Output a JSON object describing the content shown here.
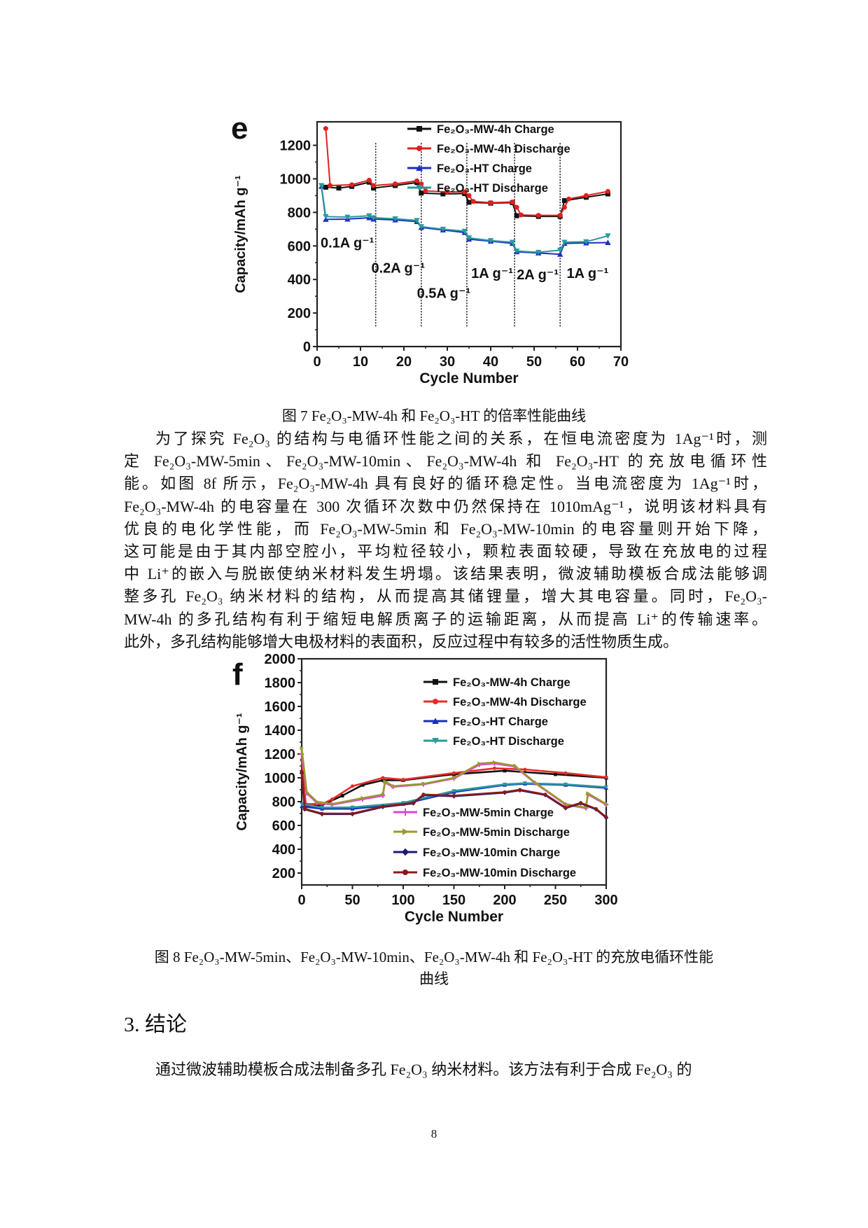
{
  "figure7": {
    "caption": "图 7 Fe₂O₃-MW-4h 和 Fe₂O₃-HT 的倍率性能曲线"
  },
  "paragraph1": {
    "lines": [
      "为了探究 Fe₂O₃ 的结构与电循环性能之间的关系，在恒电流密度为 1Ag⁻¹时，测",
      "定 Fe₂O₃-MW-5min、Fe₂O₃-MW-10min、Fe₂O₃-MW-4h 和 Fe₂O₃-HT 的充放电循环性",
      "能。如图 8f 所示，Fe₂O₃-MW-4h 具有良好的循环稳定性。当电流密度为 1Ag⁻¹时，",
      "Fe₂O₃-MW-4h 的电容量在 300 次循环次数中仍然保持在 1010mAg⁻¹，说明该材料具有",
      "优良的电化学性能，而 Fe₂O₃-MW-5min 和 Fe₂O₃-MW-10min 的电容量则开始下降，",
      "这可能是由于其内部空腔小，平均粒径较小，颗粒表面较硬，导致在充放电的过程",
      "中 Li⁺的嵌入与脱嵌使纳米材料发生坍塌。该结果表明，微波辅助模板合成法能够调",
      "整多孔 Fe₂O₃ 纳米材料的结构，从而提高其储锂量，增大其电容量。同时，Fe₂O₃-",
      "MW-4h 的多孔结构有利于缩短电解质离子的运输距离，从而提高 Li⁺的传输速率。",
      "此外，多孔结构能够增大电极材料的表面积，反应过程中有较多的活性物质生成。"
    ]
  },
  "figure8": {
    "caption_line1": "图 8 Fe₂O₃-MW-5min、Fe₂O₃-MW-10min、Fe₂O₃-MW-4h 和 Fe₂O₃-HT 的充放电循环性能",
    "caption_line2": "曲线"
  },
  "section3": {
    "heading": "3. 结论",
    "first_line": "通过微波辅助模板合成法制备多孔 Fe₂O₃ 纳米材料。该方法有利于合成 Fe₂O₃ 的"
  },
  "page_number": "8",
  "chart_data": [
    {
      "panel_label": "e",
      "type": "line",
      "xlabel": "Cycle Number",
      "ylabel": "Capacity/mAh g⁻¹",
      "xlim": [
        0,
        70
      ],
      "ylim": [
        0,
        1340
      ],
      "xticks": [
        0,
        10,
        20,
        30,
        40,
        50,
        60,
        70
      ],
      "yticks": [
        0,
        200,
        400,
        600,
        800,
        1000,
        1200
      ],
      "grid": false,
      "legend_position": "top-right",
      "dividers": [
        13.5,
        24,
        34.5,
        45.5,
        56
      ],
      "annotations": [
        {
          "text": "0.1A g⁻¹",
          "x": 0.8,
          "y": 590
        },
        {
          "text": "0.2A g⁻¹",
          "x": 12.5,
          "y": 440
        },
        {
          "text": "0.5A g⁻¹",
          "x": 23,
          "y": 290
        },
        {
          "text": "1A g⁻¹",
          "x": 35.5,
          "y": 410
        },
        {
          "text": "2A g⁻¹",
          "x": 46,
          "y": 400
        },
        {
          "text": "1A g⁻¹",
          "x": 57.5,
          "y": 410
        }
      ],
      "series": [
        {
          "name": "Fe₂O₃-MW-4h  Charge",
          "color": "#111111",
          "marker": "square",
          "points": [
            [
              2,
              950
            ],
            [
              5,
              945
            ],
            [
              8,
              955
            ],
            [
              12,
              980
            ],
            [
              13,
              945
            ],
            [
              18,
              960
            ],
            [
              23,
              978
            ],
            [
              24,
              915
            ],
            [
              29,
              910
            ],
            [
              34,
              912
            ],
            [
              35,
              860
            ],
            [
              40,
              855
            ],
            [
              45,
              858
            ],
            [
              46,
              780
            ],
            [
              51,
              776
            ],
            [
              56,
              776
            ],
            [
              57,
              870
            ],
            [
              62,
              890
            ],
            [
              67,
              910
            ]
          ]
        },
        {
          "name": "Fe₂O₃-MW-4h  Discharge",
          "color": "#e02020",
          "marker": "circle",
          "points": [
            [
              2,
              1300
            ],
            [
              3,
              960
            ],
            [
              8,
              965
            ],
            [
              12,
              992
            ],
            [
              13,
              960
            ],
            [
              18,
              970
            ],
            [
              23,
              988
            ],
            [
              24,
              970
            ],
            [
              25,
              928
            ],
            [
              30,
              922
            ],
            [
              34,
              922
            ],
            [
              35,
              900
            ],
            [
              36,
              865
            ],
            [
              40,
              858
            ],
            [
              45,
              862
            ],
            [
              46,
              830
            ],
            [
              47,
              785
            ],
            [
              51,
              782
            ],
            [
              56,
              782
            ],
            [
              57,
              830
            ],
            [
              58,
              880
            ],
            [
              62,
              900
            ],
            [
              67,
              925
            ]
          ]
        },
        {
          "name": "Fe₂O₃-HT Charge",
          "color": "#1a2fc0",
          "marker": "triangle-up",
          "points": [
            [
              1,
              955
            ],
            [
              2,
              758
            ],
            [
              7,
              760
            ],
            [
              12,
              768
            ],
            [
              13,
              760
            ],
            [
              18,
              755
            ],
            [
              23,
              745
            ],
            [
              24,
              710
            ],
            [
              29,
              695
            ],
            [
              34,
              680
            ],
            [
              35,
              640
            ],
            [
              40,
              628
            ],
            [
              45,
              615
            ],
            [
              46,
              565
            ],
            [
              51,
              558
            ],
            [
              56,
              550
            ],
            [
              57,
              615
            ],
            [
              62,
              618
            ],
            [
              67,
              620
            ]
          ]
        },
        {
          "name": "Fe₂O₃-HT Discharge",
          "color": "#2a9a9a",
          "marker": "triangle-down",
          "points": [
            [
              1,
              960
            ],
            [
              2,
              775
            ],
            [
              7,
              772
            ],
            [
              12,
              780
            ],
            [
              13,
              768
            ],
            [
              18,
              762
            ],
            [
              23,
              752
            ],
            [
              24,
              715
            ],
            [
              29,
              700
            ],
            [
              34,
              688
            ],
            [
              35,
              648
            ],
            [
              40,
              632
            ],
            [
              45,
              622
            ],
            [
              46,
              570
            ],
            [
              51,
              562
            ],
            [
              56,
              575
            ],
            [
              57,
              622
            ],
            [
              62,
              625
            ],
            [
              67,
              660
            ]
          ]
        }
      ]
    },
    {
      "panel_label": "f",
      "type": "line",
      "xlabel": "Cycle Number",
      "ylabel": "Capacity/mAh g⁻¹",
      "xlim": [
        0,
        300
      ],
      "ylim": [
        100,
        2000
      ],
      "xticks": [
        0,
        50,
        100,
        150,
        200,
        250,
        300
      ],
      "yticks": [
        200,
        400,
        600,
        800,
        1000,
        1200,
        1400,
        1600,
        1800,
        2000
      ],
      "grid": false,
      "legend_position": "top-right",
      "series": [
        {
          "name": "Fe₂O₃-MW-4h Charge",
          "color": "#111111",
          "marker": "square",
          "points": [
            [
              0,
              1050
            ],
            [
              4,
              760
            ],
            [
              20,
              770
            ],
            [
              40,
              850
            ],
            [
              60,
              940
            ],
            [
              80,
              980
            ],
            [
              100,
              980
            ],
            [
              150,
              1030
            ],
            [
              200,
              1060
            ],
            [
              250,
              1030
            ],
            [
              300,
              1000
            ]
          ]
        },
        {
          "name": "Fe₂O₃-MW-4h Discharge",
          "color": "#e82a2a",
          "marker": "circle",
          "points": [
            [
              0,
              1150
            ],
            [
              4,
              780
            ],
            [
              20,
              780
            ],
            [
              30,
              820
            ],
            [
              50,
              930
            ],
            [
              80,
              1000
            ],
            [
              100,
              985
            ],
            [
              150,
              1040
            ],
            [
              190,
              1080
            ],
            [
              220,
              1070
            ],
            [
              260,
              1040
            ],
            [
              300,
              1005
            ]
          ]
        },
        {
          "name": "Fe₂O₃-HT Charge",
          "color": "#1a2fc0",
          "marker": "triangle-up",
          "points": [
            [
              0,
              760
            ],
            [
              20,
              740
            ],
            [
              50,
              740
            ],
            [
              100,
              780
            ],
            [
              150,
              880
            ],
            [
              200,
              940
            ],
            [
              220,
              950
            ],
            [
              260,
              940
            ],
            [
              300,
              915
            ]
          ]
        },
        {
          "name": "Fe₂O₃-HT Discharge",
          "color": "#2a9a9a",
          "marker": "triangle-down",
          "points": [
            [
              0,
              780
            ],
            [
              20,
              750
            ],
            [
              50,
              752
            ],
            [
              100,
              790
            ],
            [
              150,
              890
            ],
            [
              200,
              945
            ],
            [
              220,
              955
            ],
            [
              260,
              945
            ],
            [
              300,
              922
            ]
          ]
        },
        {
          "name": "Fe₂O₃-MW-5min Charge",
          "color": "#e040e0",
          "marker": "plus",
          "points": [
            [
              0,
              1200
            ],
            [
              5,
              870
            ],
            [
              15,
              790
            ],
            [
              30,
              775
            ],
            [
              60,
              820
            ],
            [
              80,
              850
            ],
            [
              82,
              960
            ],
            [
              90,
              925
            ],
            [
              120,
              945
            ],
            [
              150,
              995
            ],
            [
              175,
              1110
            ],
            [
              190,
              1120
            ],
            [
              210,
              1095
            ],
            [
              230,
              955
            ],
            [
              260,
              775
            ],
            [
              280,
              745
            ],
            [
              282,
              860
            ],
            [
              300,
              775
            ]
          ]
        },
        {
          "name": "Fe₂O₃-MW-5min Discharge",
          "color": "#9a9a2a",
          "marker": "triangle-right",
          "points": [
            [
              0,
              1250
            ],
            [
              5,
              880
            ],
            [
              15,
              800
            ],
            [
              30,
              780
            ],
            [
              60,
              830
            ],
            [
              80,
              860
            ],
            [
              82,
              970
            ],
            [
              90,
              930
            ],
            [
              120,
              950
            ],
            [
              150,
              1000
            ],
            [
              175,
              1120
            ],
            [
              190,
              1130
            ],
            [
              210,
              1100
            ],
            [
              230,
              960
            ],
            [
              260,
              780
            ],
            [
              280,
              750
            ],
            [
              282,
              870
            ],
            [
              300,
              780
            ]
          ]
        },
        {
          "name": "Fe₂O₃-MW-10min Charge",
          "color": "#1a1a70",
          "marker": "diamond",
          "points": [
            [
              0,
              1040
            ],
            [
              3,
              735
            ],
            [
              20,
              695
            ],
            [
              50,
              695
            ],
            [
              80,
              755
            ],
            [
              110,
              785
            ],
            [
              120,
              855
            ],
            [
              150,
              845
            ],
            [
              200,
              875
            ],
            [
              215,
              895
            ],
            [
              240,
              855
            ],
            [
              260,
              745
            ],
            [
              275,
              785
            ],
            [
              290,
              735
            ],
            [
              300,
              665
            ]
          ]
        },
        {
          "name": "Fe₂O₃-MW-10min Discharge",
          "color": "#8a1a1a",
          "marker": "circle",
          "points": [
            [
              0,
              1050
            ],
            [
              3,
              740
            ],
            [
              20,
              700
            ],
            [
              50,
              700
            ],
            [
              80,
              760
            ],
            [
              110,
              790
            ],
            [
              120,
              860
            ],
            [
              150,
              850
            ],
            [
              200,
              880
            ],
            [
              215,
              900
            ],
            [
              240,
              860
            ],
            [
              260,
              750
            ],
            [
              275,
              790
            ],
            [
              290,
              740
            ],
            [
              300,
              670
            ]
          ]
        }
      ]
    }
  ]
}
